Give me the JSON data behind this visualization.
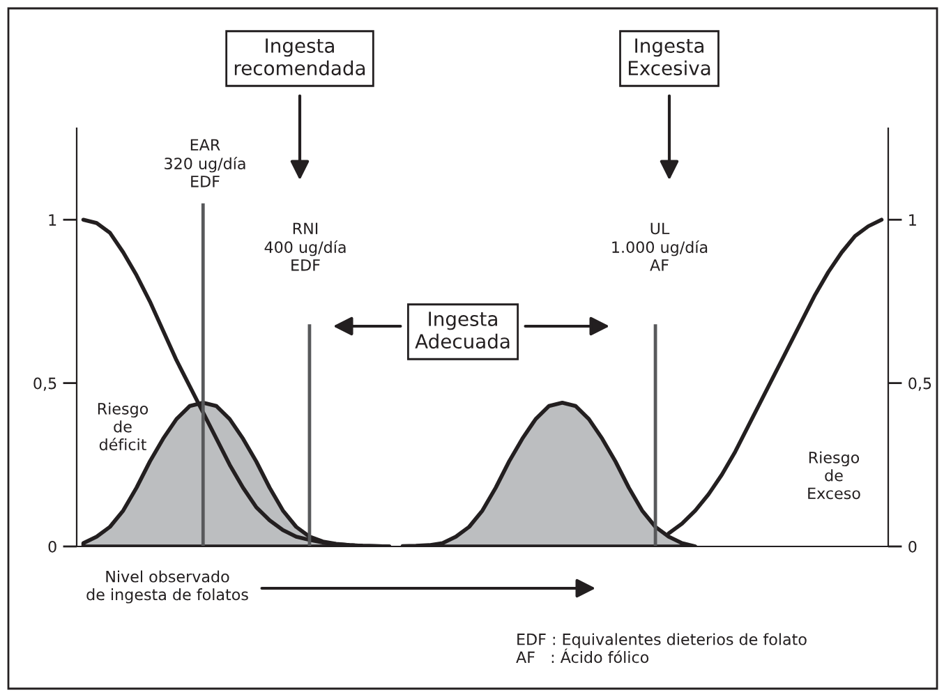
{
  "chart_data": {
    "type": "line",
    "categories": [
      null,
      null,
      null,
      null,
      null,
      null,
      null,
      null,
      null,
      null,
      null,
      null,
      null,
      null,
      null,
      null,
      null,
      null,
      null,
      null,
      null,
      null,
      null,
      null,
      null,
      null,
      null,
      null,
      null,
      null,
      null,
      null,
      null,
      null,
      null,
      null,
      null,
      null,
      null,
      null,
      null,
      null,
      null,
      null,
      null,
      null,
      null,
      null,
      null,
      null,
      null,
      null,
      null,
      null,
      null,
      null,
      null,
      null,
      null,
      null,
      null
    ],
    "series": [
      {
        "type": "area",
        "color": "#bcbec0",
        "values": [
          0.01,
          0.03,
          0.06,
          0.11,
          0.18,
          0.26,
          0.33,
          0.39,
          0.43,
          0.44,
          0.43,
          0.39,
          0.33,
          0.26,
          0.18,
          0.11,
          0.06,
          0.03,
          0.015,
          0.008,
          0.004,
          0.002,
          0.001,
          0,
          null,
          null,
          null,
          null,
          null,
          null,
          null,
          null,
          null,
          null,
          null,
          null,
          null,
          null,
          null,
          null,
          null,
          null,
          null,
          null,
          null,
          null,
          null,
          null,
          null,
          null,
          null,
          null,
          null,
          null,
          null,
          null,
          null,
          null,
          null,
          null,
          null
        ]
      },
      {
        "type": "area",
        "color": "#bcbec0",
        "values": [
          null,
          null,
          null,
          null,
          null,
          null,
          null,
          null,
          null,
          null,
          null,
          null,
          null,
          null,
          null,
          null,
          null,
          null,
          null,
          null,
          null,
          null,
          null,
          null,
          0.001,
          0.002,
          0.004,
          0.01,
          0.03,
          0.06,
          0.11,
          0.18,
          0.26,
          0.33,
          0.39,
          0.43,
          0.44,
          0.43,
          0.39,
          0.33,
          0.26,
          0.18,
          0.11,
          0.06,
          0.03,
          0.01,
          0,
          null,
          null,
          null,
          null,
          null,
          null,
          null,
          null,
          null,
          null,
          null,
          null,
          null,
          null
        ]
      },
      {
        "color": "#231f20",
        "values": [
          1.0,
          0.99,
          0.96,
          0.9,
          0.83,
          0.75,
          0.66,
          0.57,
          0.49,
          0.41,
          0.33,
          0.25,
          0.18,
          0.12,
          0.08,
          0.05,
          0.03,
          0.02,
          0.012,
          0.007,
          0.004,
          0.002,
          0.001,
          0,
          null,
          null,
          null,
          null,
          null,
          null,
          null,
          null,
          null,
          null,
          null,
          null,
          null,
          null,
          null,
          null,
          null,
          null,
          null,
          null,
          null,
          null,
          null,
          null,
          null,
          null,
          null,
          null,
          null,
          null,
          null,
          null,
          null,
          null,
          null,
          null,
          null
        ]
      },
      {
        "color": "#231f20",
        "values": [
          null,
          null,
          null,
          null,
          null,
          null,
          null,
          null,
          null,
          null,
          null,
          null,
          null,
          null,
          null,
          null,
          null,
          null,
          null,
          null,
          null,
          null,
          null,
          null,
          null,
          null,
          null,
          null,
          null,
          null,
          null,
          null,
          null,
          null,
          null,
          null,
          null,
          null,
          null,
          null,
          null,
          null,
          null,
          null,
          0.04,
          0.07,
          0.11,
          0.16,
          0.22,
          0.29,
          0.37,
          0.45,
          0.53,
          0.61,
          0.69,
          0.77,
          0.84,
          0.9,
          0.95,
          0.98,
          1.0
        ]
      },
      {
        "type": "bar",
        "color": "#58595b",
        "values": [
          null,
          null,
          null,
          null,
          null,
          null,
          null,
          null,
          null,
          1.05,
          null,
          null,
          null,
          null,
          null,
          null,
          null,
          0.68,
          null,
          null,
          null,
          null,
          null,
          null,
          null,
          null,
          null,
          null,
          null,
          null,
          null,
          null,
          null,
          null,
          null,
          null,
          null,
          null,
          null,
          null,
          null,
          null,
          null,
          0.68,
          null,
          null,
          null,
          null,
          null,
          null,
          null,
          null,
          null,
          null,
          null,
          null,
          null,
          null,
          null,
          null,
          null
        ]
      }
    ],
    "ylim": [
      0,
      1.28
    ],
    "yticks": [
      0,
      {
        "value": 0.5,
        "label": "0,5"
      },
      1
    ],
    "y2lim": [
      0,
      1.28
    ],
    "y2ticks": [
      0,
      {
        "value": 0.5,
        "label": "0,5"
      },
      1
    ],
    "grid": false,
    "legend": false,
    "annotations": [
      "Ingesta\nrecomendada",
      "Ingesta\nExcesiva",
      "EAR\n320 ug/día\nEDF",
      "RNI\n400 ug/día\nEDF",
      "UL\n1.000 ug/día\nAF",
      "Ingesta\nAdecuada",
      "Riesgo\nde\ndéficit",
      "Riesgo\nde\nExceso",
      "Nivel observado\nde ingesta de folatos",
      "EDF : Equivalentes dieterios de folato\nAF   : Ácido fólico"
    ]
  }
}
